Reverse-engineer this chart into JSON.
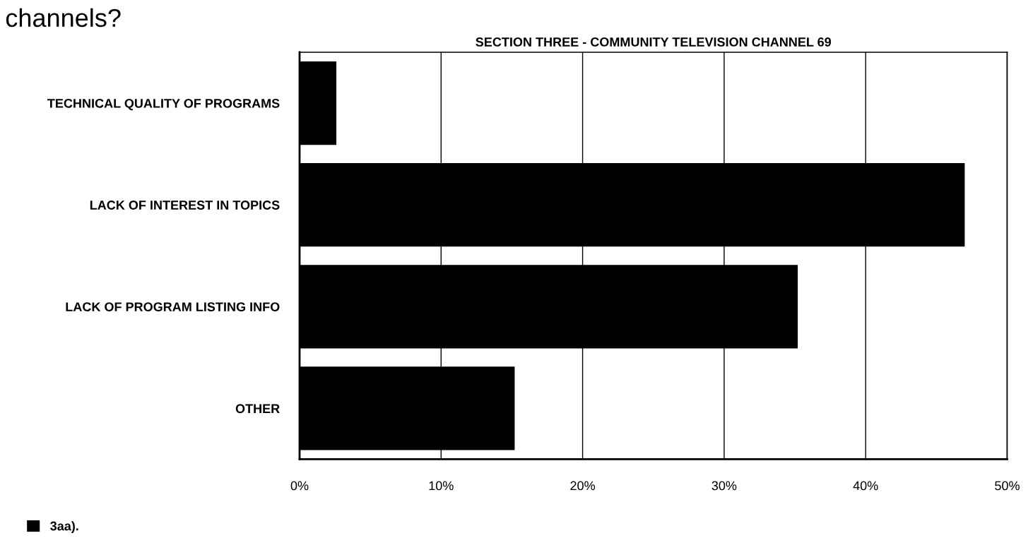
{
  "chart_data": {
    "type": "bar",
    "orientation": "horizontal",
    "title": "SECTION THREE - COMMUNITY TELEVISION CHANNEL 69",
    "annotations": [
      "channels?"
    ],
    "categories": [
      "TECHNICAL QUALITY OF PROGRAMS",
      "LACK OF INTEREST IN TOPICS",
      "LACK OF PROGRAM LISTING INFO",
      "OTHER"
    ],
    "series": [
      {
        "name": "3aa).",
        "color": "#000000",
        "values": [
          2.6,
          47.0,
          35.2,
          15.2
        ]
      }
    ],
    "xlim": [
      0,
      50
    ],
    "xticks": [
      {
        "value": 0,
        "label": "0%"
      },
      {
        "value": 10,
        "label": "10%"
      },
      {
        "value": 20,
        "label": "20%"
      },
      {
        "value": 30,
        "label": "30%"
      },
      {
        "value": 40,
        "label": "40%"
      },
      {
        "value": 50,
        "label": "50%"
      }
    ],
    "grid": "x",
    "legend": "bottom left"
  }
}
